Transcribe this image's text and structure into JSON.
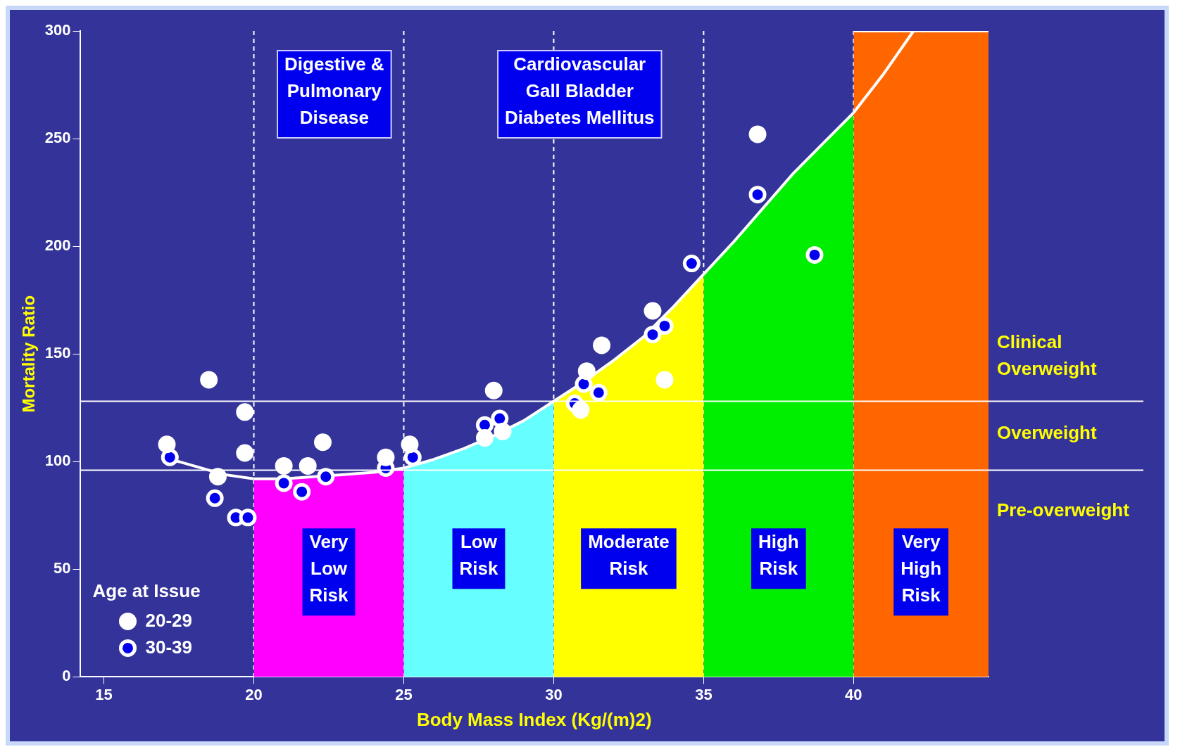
{
  "chart_data": {
    "type": "scatter",
    "xlabel": "Body Mass Index (Kg/(m)2)",
    "ylabel": "Mortality Ratio",
    "xlim": [
      14.2,
      44.5
    ],
    "ylim": [
      0,
      300
    ],
    "xticks": [
      15,
      20,
      25,
      30,
      35,
      40
    ],
    "yticks": [
      0,
      50,
      100,
      150,
      200,
      250,
      300
    ],
    "grid": false,
    "legend": "bottom left",
    "legend_title": "Age at Issue",
    "series": [
      {
        "type": "area",
        "name": "Very Low Risk",
        "color": "#ff00ff",
        "x": [
          20,
          21,
          22,
          23,
          24,
          25
        ],
        "values": [
          92,
          92,
          93,
          94,
          95,
          97
        ]
      },
      {
        "type": "area",
        "name": "Low Risk",
        "color": "#66ffff",
        "x": [
          25,
          26,
          27,
          28,
          29,
          30
        ],
        "values": [
          97,
          101,
          106,
          112,
          119,
          128
        ]
      },
      {
        "type": "area",
        "name": "Moderate Risk",
        "color": "#ffff00",
        "x": [
          30,
          31,
          32,
          33,
          34,
          35
        ],
        "values": [
          128,
          137,
          147,
          158,
          172,
          187
        ]
      },
      {
        "type": "area",
        "name": "High Risk",
        "color": "#00ee00",
        "x": [
          35,
          36,
          37,
          38,
          39,
          40
        ],
        "values": [
          187,
          202,
          218,
          234,
          248,
          262
        ]
      },
      {
        "type": "area",
        "name": "Very High Risk",
        "color": "#ff6600",
        "x": [
          40,
          44.5
        ],
        "values": [
          300,
          300
        ]
      },
      {
        "type": "line",
        "color": "#ffffff",
        "x": [
          17,
          18,
          19,
          20,
          30,
          40,
          41,
          42
        ],
        "values": [
          102,
          98,
          94,
          92,
          null,
          262,
          280,
          300
        ]
      },
      {
        "name": "20-29",
        "color": "#ffffff",
        "marker": "circle",
        "x": [
          17.1,
          18.5,
          18.8,
          19.7,
          19.7,
          21.0,
          21.8,
          22.3,
          24.4,
          25.2,
          27.7,
          28.0,
          28.3,
          30.9,
          31.1,
          31.6,
          33.3,
          33.7,
          36.8
        ],
        "values": [
          108,
          138,
          93,
          123,
          104,
          98,
          98,
          109,
          102,
          108,
          111,
          133,
          114,
          124,
          142,
          154,
          170,
          138,
          252
        ]
      },
      {
        "name": "30-39",
        "color": "#0000ee",
        "marker": "circle",
        "x": [
          17.2,
          18.7,
          19.4,
          19.8,
          21.0,
          21.6,
          22.4,
          24.4,
          25.3,
          27.7,
          28.2,
          30.7,
          31.0,
          31.5,
          33.3,
          33.7,
          34.6,
          36.8,
          38.7
        ],
        "values": [
          102,
          83,
          74,
          74,
          90,
          86,
          93,
          97,
          102,
          117,
          120,
          127,
          136,
          132,
          159,
          163,
          192,
          224,
          196
        ]
      }
    ],
    "ref_lines": [
      {
        "axis": "x",
        "value": 20,
        "line_style": "dashed",
        "color": "#ffffff"
      },
      {
        "axis": "x",
        "value": 25,
        "line_style": "dashed",
        "color": "#ffffff"
      },
      {
        "axis": "x",
        "value": 30,
        "line_style": "dashed",
        "color": "#ffffff"
      },
      {
        "axis": "x",
        "value": 35,
        "line_style": "dashed",
        "color": "#ffffff"
      },
      {
        "axis": "x",
        "value": 40,
        "line_style": "dashed",
        "color": "#ffffff"
      },
      {
        "axis": "y",
        "value": 128,
        "line_style": "solid",
        "color": "#ffffff"
      },
      {
        "axis": "y",
        "value": 96,
        "line_style": "solid",
        "color": "#ffffff"
      }
    ],
    "annotations": [
      "Digestive &\nPulmonary\nDisease",
      "Cardiovascular\nGall Bladder\nDiabetes Mellitus",
      "Clinical\nOverweight",
      "Overweight",
      "Pre-overweight"
    ]
  }
}
